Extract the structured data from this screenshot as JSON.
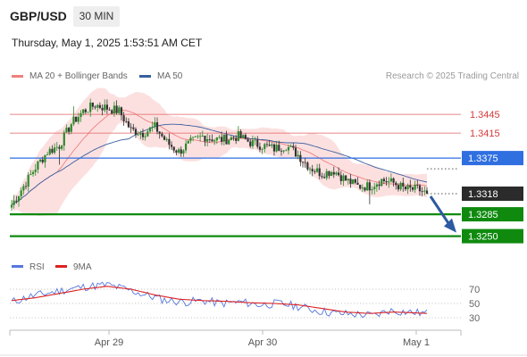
{
  "header": {
    "symbol": "GBP/USD",
    "timeframe": "30 MIN",
    "datetime": "Thursday, May 1, 2025 1:53:51 AM CET",
    "credit": "Research © 2025 Trading Central"
  },
  "legend": {
    "ma20": {
      "label": "MA 20 + Bollinger Bands",
      "color": "#f08080"
    },
    "ma50": {
      "label": "MA 50",
      "color": "#3a5fa0"
    },
    "rsi": {
      "label": "RSI",
      "color": "#5577dd"
    },
    "rsi_ma": {
      "label": "9MA",
      "color": "#dd2222"
    }
  },
  "chart_data": [
    {
      "type": "candlestick",
      "title": "",
      "x_ticks": [
        "Apr 29",
        "Apr 30",
        "May 1"
      ],
      "ylim": [
        1.3228,
        1.3478
      ],
      "current_price": 1.3318,
      "levels": [
        {
          "price": 1.3445,
          "label": "1.3445",
          "kind": "resistance",
          "color": "#e06060"
        },
        {
          "price": 1.3415,
          "label": "1.3415",
          "kind": "resistance",
          "color": "#e06060"
        },
        {
          "price": 1.3375,
          "label": "1.3375",
          "kind": "pivot",
          "color": "#3a70d8"
        },
        {
          "price": 1.3318,
          "label": "1.3318",
          "kind": "current",
          "color": "#333333"
        },
        {
          "price": 1.3285,
          "label": "1.3285",
          "kind": "support",
          "color": "#1f8a1f"
        },
        {
          "price": 1.325,
          "label": "1.3250",
          "kind": "support",
          "color": "#1f8a1f"
        }
      ],
      "forecast_arrow": {
        "from": 1.3318,
        "to": 1.326,
        "color": "#2d5aa0"
      },
      "anchors": [
        [
          0,
          1.33
        ],
        [
          5,
          1.333
        ],
        [
          10,
          1.336
        ],
        [
          15,
          1.3385
        ],
        [
          20,
          1.3395
        ],
        [
          25,
          1.343
        ],
        [
          30,
          1.345
        ],
        [
          35,
          1.346
        ],
        [
          40,
          1.3455
        ],
        [
          45,
          1.345
        ],
        [
          50,
          1.342
        ],
        [
          55,
          1.3415
        ],
        [
          60,
          1.3425
        ],
        [
          65,
          1.34
        ],
        [
          70,
          1.3385
        ],
        [
          75,
          1.34
        ],
        [
          80,
          1.341
        ],
        [
          85,
          1.3405
        ],
        [
          90,
          1.3405
        ],
        [
          95,
          1.341
        ],
        [
          100,
          1.34
        ],
        [
          105,
          1.3395
        ],
        [
          110,
          1.339
        ],
        [
          115,
          1.3395
        ],
        [
          120,
          1.338
        ],
        [
          125,
          1.336
        ],
        [
          130,
          1.335
        ],
        [
          135,
          1.3355
        ],
        [
          140,
          1.334
        ],
        [
          145,
          1.333
        ],
        [
          150,
          1.333
        ],
        [
          155,
          1.334
        ],
        [
          160,
          1.3335
        ],
        [
          165,
          1.3325
        ],
        [
          170,
          1.3325
        ],
        [
          174,
          1.3318
        ]
      ]
    },
    {
      "type": "line",
      "title": "",
      "y_ticks": [
        70,
        50,
        30
      ],
      "ylim": [
        15,
        85
      ],
      "series": [
        {
          "name": "RSI",
          "anchors": [
            [
              0,
              52
            ],
            [
              8,
              60
            ],
            [
              16,
              65
            ],
            [
              24,
              70
            ],
            [
              32,
              74
            ],
            [
              40,
              76
            ],
            [
              48,
              70
            ],
            [
              56,
              62
            ],
            [
              64,
              55
            ],
            [
              72,
              52
            ],
            [
              80,
              54
            ],
            [
              88,
              50
            ],
            [
              96,
              52
            ],
            [
              104,
              48
            ],
            [
              112,
              50
            ],
            [
              120,
              46
            ],
            [
              128,
              40
            ],
            [
              136,
              36
            ],
            [
              144,
              35
            ],
            [
              152,
              33
            ],
            [
              158,
              40
            ],
            [
              166,
              38
            ],
            [
              174,
              36
            ]
          ]
        },
        {
          "name": "9MA",
          "anchors": [
            [
              0,
              54
            ],
            [
              10,
              58
            ],
            [
              20,
              64
            ],
            [
              30,
              70
            ],
            [
              40,
              74
            ],
            [
              50,
              70
            ],
            [
              60,
              62
            ],
            [
              70,
              56
            ],
            [
              80,
              54
            ],
            [
              90,
              53
            ],
            [
              100,
              51
            ],
            [
              110,
              50
            ],
            [
              120,
              48
            ],
            [
              130,
              43
            ],
            [
              140,
              38
            ],
            [
              150,
              36
            ],
            [
              160,
              38
            ],
            [
              168,
              37
            ],
            [
              174,
              36
            ]
          ]
        }
      ]
    }
  ]
}
